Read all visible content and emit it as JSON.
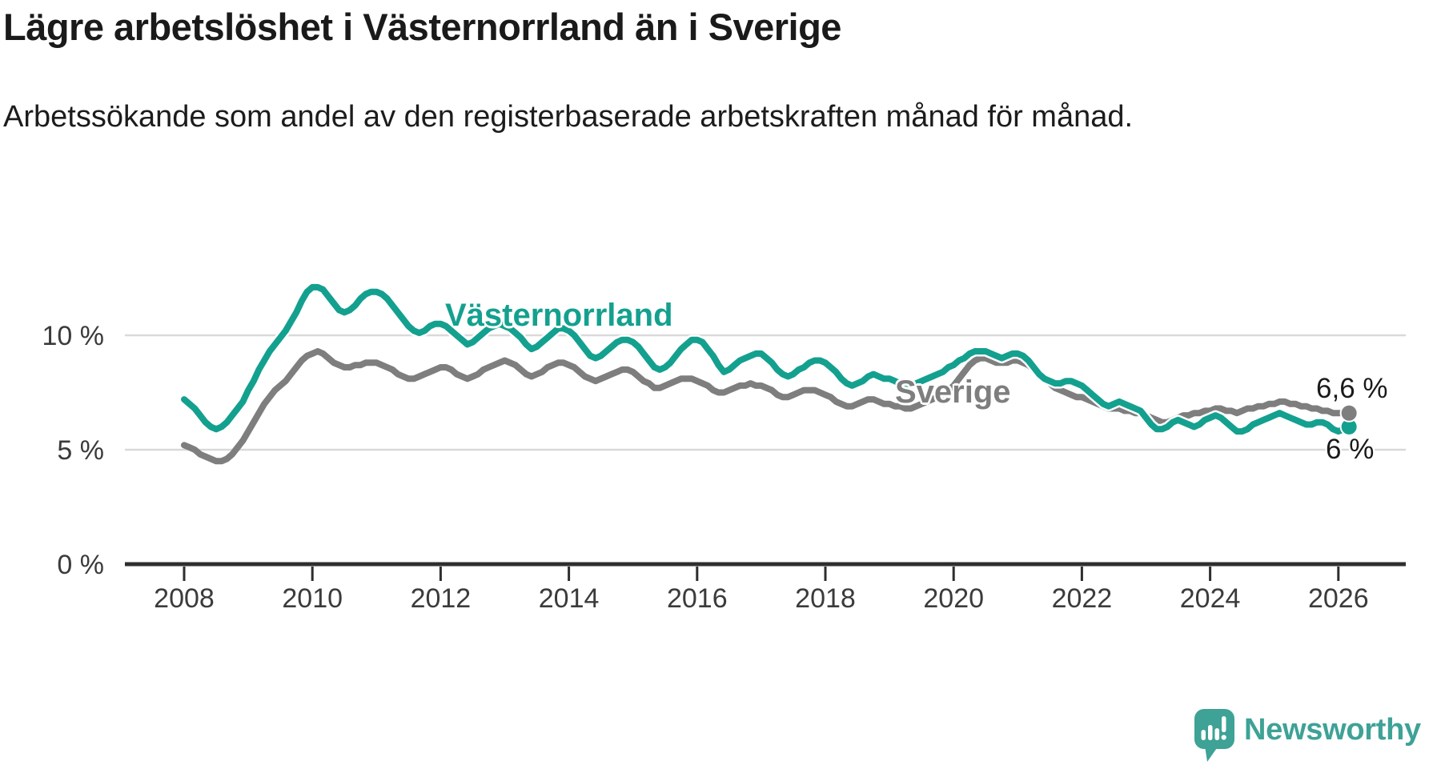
{
  "header": {
    "title": "Lägre arbetslöshet i Västernorrland än i Sverige",
    "subtitle": "Arbetssökande som andel av den registerbaserade arbetskraften månad för månad."
  },
  "colors": {
    "vasternorrland": "#14A08F",
    "sverige": "#7E7E7E",
    "grid": "#D9D9D9",
    "axis": "#2E2E2E",
    "tick_text": "#3B3B3B",
    "value_text": "#1A1A1A",
    "brand": "#3EA296",
    "background": "#FFFFFF"
  },
  "branding": {
    "name": "Newsworthy",
    "logo_icon": "speech-bubble-bar-chart"
  },
  "chart_data": {
    "type": "line",
    "title": "Lägre arbetslöshet i Västernorrland än i Sverige",
    "subtitle": "Arbetssökande som andel av den registerbaserade arbetskraften månad för månad.",
    "unit": "%",
    "x_interval": "monthly",
    "x_start": "2008-01",
    "x_end": "2026-03",
    "ylim": [
      0,
      13.3
    ],
    "grid": "horizontal-only",
    "legend_position": "inline-labels-on-lines",
    "x_ticks": [
      {
        "year": 2008,
        "label": "2008"
      },
      {
        "year": 2010,
        "label": "2010"
      },
      {
        "year": 2012,
        "label": "2012"
      },
      {
        "year": 2014,
        "label": "2014"
      },
      {
        "year": 2016,
        "label": "2016"
      },
      {
        "year": 2018,
        "label": "2018"
      },
      {
        "year": 2020,
        "label": "2020"
      },
      {
        "year": 2022,
        "label": "2022"
      },
      {
        "year": 2024,
        "label": "2024"
      },
      {
        "year": 2026,
        "label": "2026"
      }
    ],
    "y_ticks": [
      {
        "value": 0,
        "label": "0 %"
      },
      {
        "value": 5,
        "label": "5 %"
      },
      {
        "value": 10,
        "label": "10 %"
      }
    ],
    "series": [
      {
        "name": "Västernorrland",
        "color": "#14A08F",
        "end_label": "6 %",
        "end_value": 6.0,
        "values": [
          7.2,
          7.0,
          6.8,
          6.5,
          6.2,
          6.0,
          5.9,
          6.0,
          6.2,
          6.5,
          6.8,
          7.1,
          7.6,
          8.0,
          8.5,
          8.9,
          9.3,
          9.6,
          9.9,
          10.2,
          10.6,
          11.0,
          11.5,
          11.9,
          12.1,
          12.1,
          12.0,
          11.7,
          11.4,
          11.1,
          11.0,
          11.1,
          11.3,
          11.6,
          11.8,
          11.9,
          11.9,
          11.8,
          11.6,
          11.3,
          11.0,
          10.7,
          10.4,
          10.2,
          10.1,
          10.2,
          10.4,
          10.5,
          10.5,
          10.4,
          10.2,
          10.0,
          9.8,
          9.6,
          9.7,
          9.9,
          10.1,
          10.3,
          10.4,
          10.5,
          10.4,
          10.3,
          10.1,
          9.9,
          9.6,
          9.4,
          9.5,
          9.7,
          9.9,
          10.1,
          10.3,
          10.3,
          10.2,
          10.0,
          9.7,
          9.4,
          9.1,
          9.0,
          9.1,
          9.3,
          9.5,
          9.7,
          9.8,
          9.8,
          9.7,
          9.5,
          9.2,
          8.9,
          8.6,
          8.5,
          8.6,
          8.8,
          9.1,
          9.4,
          9.6,
          9.8,
          9.8,
          9.7,
          9.4,
          9.1,
          8.7,
          8.4,
          8.5,
          8.7,
          8.9,
          9.0,
          9.1,
          9.2,
          9.2,
          9.0,
          8.8,
          8.5,
          8.3,
          8.2,
          8.3,
          8.5,
          8.6,
          8.8,
          8.9,
          8.9,
          8.8,
          8.6,
          8.4,
          8.1,
          7.9,
          7.8,
          7.9,
          8.0,
          8.2,
          8.3,
          8.2,
          8.1,
          8.1,
          8.0,
          7.9,
          7.8,
          7.8,
          7.9,
          8.0,
          8.1,
          8.2,
          8.3,
          8.4,
          8.6,
          8.7,
          8.9,
          9.0,
          9.2,
          9.3,
          9.3,
          9.3,
          9.2,
          9.1,
          9.0,
          9.1,
          9.2,
          9.2,
          9.1,
          8.9,
          8.6,
          8.3,
          8.1,
          8.0,
          7.9,
          7.9,
          8.0,
          8.0,
          7.9,
          7.8,
          7.6,
          7.4,
          7.2,
          7.0,
          6.9,
          7.0,
          7.1,
          7.0,
          6.9,
          6.8,
          6.7,
          6.4,
          6.1,
          5.9,
          5.9,
          6.0,
          6.2,
          6.3,
          6.2,
          6.1,
          6.0,
          6.1,
          6.3,
          6.4,
          6.5,
          6.4,
          6.2,
          6.0,
          5.8,
          5.8,
          5.9,
          6.1,
          6.2,
          6.3,
          6.4,
          6.5,
          6.6,
          6.5,
          6.4,
          6.3,
          6.2,
          6.1,
          6.1,
          6.2,
          6.2,
          6.1,
          5.9,
          5.8,
          5.9,
          6.0
        ]
      },
      {
        "name": "Sverige",
        "color": "#7E7E7E",
        "end_label": "6,6 %",
        "end_value": 6.6,
        "values": [
          5.2,
          5.1,
          5.0,
          4.8,
          4.7,
          4.6,
          4.5,
          4.5,
          4.6,
          4.8,
          5.1,
          5.4,
          5.8,
          6.2,
          6.6,
          7.0,
          7.3,
          7.6,
          7.8,
          8.0,
          8.3,
          8.6,
          8.9,
          9.1,
          9.2,
          9.3,
          9.2,
          9.0,
          8.8,
          8.7,
          8.6,
          8.6,
          8.7,
          8.7,
          8.8,
          8.8,
          8.8,
          8.7,
          8.6,
          8.5,
          8.3,
          8.2,
          8.1,
          8.1,
          8.2,
          8.3,
          8.4,
          8.5,
          8.6,
          8.6,
          8.5,
          8.3,
          8.2,
          8.1,
          8.2,
          8.3,
          8.5,
          8.6,
          8.7,
          8.8,
          8.9,
          8.8,
          8.7,
          8.5,
          8.3,
          8.2,
          8.3,
          8.4,
          8.6,
          8.7,
          8.8,
          8.8,
          8.7,
          8.6,
          8.4,
          8.2,
          8.1,
          8.0,
          8.1,
          8.2,
          8.3,
          8.4,
          8.5,
          8.5,
          8.4,
          8.2,
          8.0,
          7.9,
          7.7,
          7.7,
          7.8,
          7.9,
          8.0,
          8.1,
          8.1,
          8.1,
          8.0,
          7.9,
          7.8,
          7.6,
          7.5,
          7.5,
          7.6,
          7.7,
          7.8,
          7.8,
          7.9,
          7.8,
          7.8,
          7.7,
          7.6,
          7.4,
          7.3,
          7.3,
          7.4,
          7.5,
          7.6,
          7.6,
          7.6,
          7.5,
          7.4,
          7.3,
          7.1,
          7.0,
          6.9,
          6.9,
          7.0,
          7.1,
          7.2,
          7.2,
          7.1,
          7.0,
          7.0,
          6.9,
          6.9,
          6.8,
          6.8,
          6.9,
          7.0,
          7.1,
          7.2,
          7.3,
          7.4,
          7.6,
          7.8,
          8.1,
          8.4,
          8.7,
          8.9,
          9.0,
          9.0,
          8.9,
          8.8,
          8.8,
          8.8,
          8.9,
          8.9,
          8.8,
          8.7,
          8.5,
          8.3,
          8.1,
          7.9,
          7.7,
          7.6,
          7.5,
          7.4,
          7.3,
          7.3,
          7.2,
          7.1,
          7.0,
          6.9,
          6.8,
          6.8,
          6.8,
          6.7,
          6.7,
          6.6,
          6.6,
          6.5,
          6.4,
          6.3,
          6.2,
          6.2,
          6.3,
          6.4,
          6.5,
          6.5,
          6.6,
          6.6,
          6.7,
          6.7,
          6.8,
          6.8,
          6.7,
          6.7,
          6.6,
          6.7,
          6.8,
          6.8,
          6.9,
          6.9,
          7.0,
          7.0,
          7.1,
          7.1,
          7.0,
          7.0,
          6.9,
          6.9,
          6.8,
          6.8,
          6.7,
          6.7,
          6.6,
          6.6,
          6.6,
          6.6
        ]
      }
    ]
  }
}
